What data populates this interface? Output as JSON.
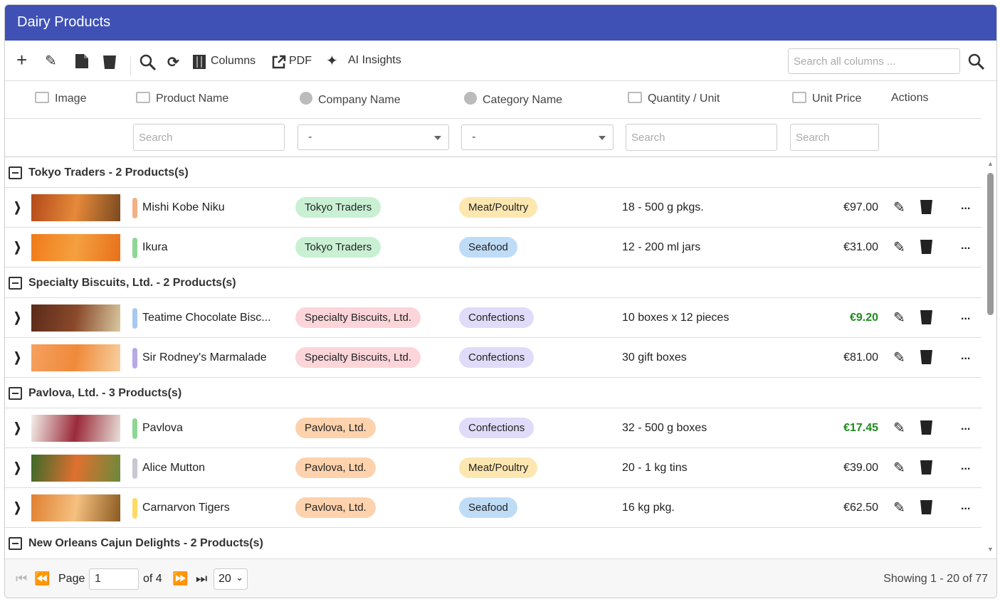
{
  "header": {
    "title": "Dairy Products"
  },
  "toolbar": {
    "columns": "Columns",
    "pdf": "PDF",
    "ai_insights": "AI Insights",
    "search_placeholder": "Search all columns ..."
  },
  "table": {
    "columns": [
      "Image",
      "Product Name",
      "Company Name",
      "Category Name",
      "Quantity / Unit",
      "Unit Price",
      "Actions"
    ],
    "filters": [
      "Search",
      "-",
      "-",
      "Search",
      "Search"
    ],
    "groups": [
      {
        "label": "Tokyo Traders - 2 Products(s)",
        "rows": [
          {
            "product": "Mishi Kobe Niku",
            "company": "Tokyo Traders",
            "category": "Meat/Poultry",
            "quantity": "18 - 500 g pkgs.",
            "price": "€97.00",
            "highlight": false,
            "status_color": "#f4b183",
            "company_color": "#c9f0d3",
            "category_color": "#fde7b0"
          },
          {
            "product": "Ikura",
            "company": "Tokyo Traders",
            "category": "Seafood",
            "quantity": "12 - 200 ml jars",
            "price": "€31.00",
            "highlight": false,
            "status_color": "#8fd694",
            "company_color": "#c9f0d3",
            "category_color": "#bfdcf7"
          }
        ]
      },
      {
        "label": "Specialty Biscuits, Ltd. - 2 Products(s)",
        "rows": [
          {
            "product": "Teatime Chocolate Bisc...",
            "company": "Specialty Biscuits, Ltd.",
            "category": "Confections",
            "quantity": "10 boxes x 12 pieces",
            "price": "€9.20",
            "highlight": true,
            "status_color": "#a8c8f0",
            "company_color": "#fbd5d9",
            "category_color": "#e0dbf8"
          },
          {
            "product": "Sir Rodney's Marmalade",
            "company": "Specialty Biscuits, Ltd.",
            "category": "Confections",
            "quantity": "30 gift boxes",
            "price": "€81.00",
            "highlight": false,
            "status_color": "#b9a8e8",
            "company_color": "#fbd5d9",
            "category_color": "#e0dbf8"
          }
        ]
      },
      {
        "label": "Pavlova, Ltd. - 3 Products(s)",
        "rows": [
          {
            "product": "Pavlova",
            "company": "Pavlova, Ltd.",
            "category": "Confections",
            "quantity": "32 - 500 g boxes",
            "price": "€17.45",
            "highlight": true,
            "status_color": "#8fd694",
            "company_color": "#fdd2ad",
            "category_color": "#e0dbf8"
          },
          {
            "product": "Alice Mutton",
            "company": "Pavlova, Ltd.",
            "category": "Meat/Poultry",
            "quantity": "20 - 1 kg tins",
            "price": "€39.00",
            "highlight": false,
            "status_color": "#c8c8d0",
            "company_color": "#fdd2ad",
            "category_color": "#fde7b0"
          },
          {
            "product": "Carnarvon Tigers",
            "company": "Pavlova, Ltd.",
            "category": "Seafood",
            "quantity": "16 kg pkg.",
            "price": "€62.50",
            "highlight": false,
            "status_color": "#ffd966",
            "company_color": "#fdd2ad",
            "category_color": "#bfdcf7"
          }
        ]
      },
      {
        "label": "New Orleans Cajun Delights - 2 Products(s)",
        "rows": []
      }
    ]
  },
  "pager": {
    "page_label": "Page",
    "page": "1",
    "of": "of 4",
    "page_size": "20",
    "summary": "Showing 1 - 20 of 77"
  }
}
